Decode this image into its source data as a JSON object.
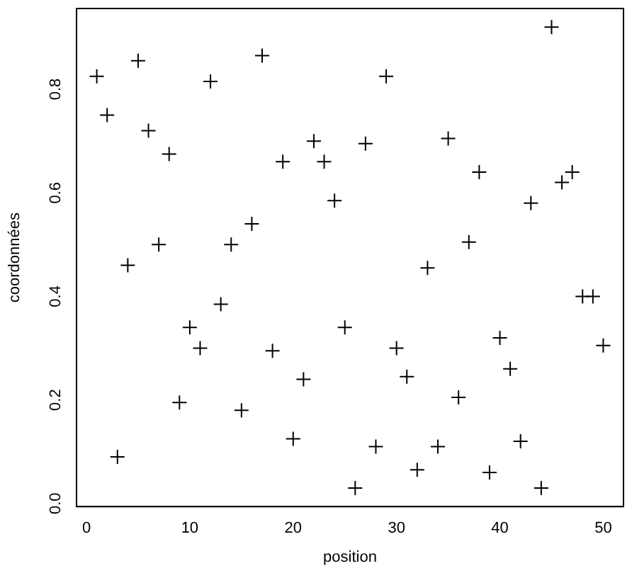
{
  "chart_data": {
    "type": "scatter",
    "xlabel": "position",
    "ylabel": "coordonnées",
    "marker": "cross",
    "x": [
      1,
      2,
      3,
      4,
      5,
      6,
      7,
      8,
      9,
      10,
      11,
      12,
      13,
      14,
      15,
      16,
      17,
      18,
      19,
      20,
      21,
      22,
      23,
      24,
      25,
      26,
      27,
      28,
      29,
      30,
      31,
      32,
      33,
      34,
      35,
      36,
      37,
      38,
      39,
      40,
      41,
      42,
      43,
      44,
      45,
      46,
      47,
      48,
      49,
      50
    ],
    "series": [
      {
        "color": "#000000",
        "values": [
          0.825,
          0.75,
          0.09,
          0.46,
          0.855,
          0.72,
          0.5,
          0.675,
          0.195,
          0.34,
          0.3,
          0.815,
          0.385,
          0.5,
          0.18,
          0.54,
          0.865,
          0.295,
          0.66,
          0.125,
          0.24,
          0.7,
          0.66,
          0.585,
          0.34,
          0.03,
          0.695,
          0.11,
          0.825,
          0.3,
          0.245,
          0.065,
          0.455,
          0.11,
          0.705,
          0.205,
          0.505,
          0.64,
          0.06,
          0.32,
          0.26,
          0.12,
          0.58,
          0.03,
          0.92,
          0.62,
          0.64,
          0.4,
          0.4,
          0.305
        ]
      }
    ],
    "xlim": [
      -0.96,
      51.96
    ],
    "ylim": [
      -0.006,
      0.956
    ],
    "xticks": [
      0,
      10,
      20,
      30,
      40,
      50
    ],
    "yticks": [
      {
        "value": 0,
        "label": "0.0"
      },
      {
        "value": 0.2,
        "label": "0.2"
      },
      {
        "value": 0.4,
        "label": "0.4"
      },
      {
        "value": 0.6,
        "label": "0.6"
      },
      {
        "value": 0.8,
        "label": "0.8"
      }
    ]
  }
}
